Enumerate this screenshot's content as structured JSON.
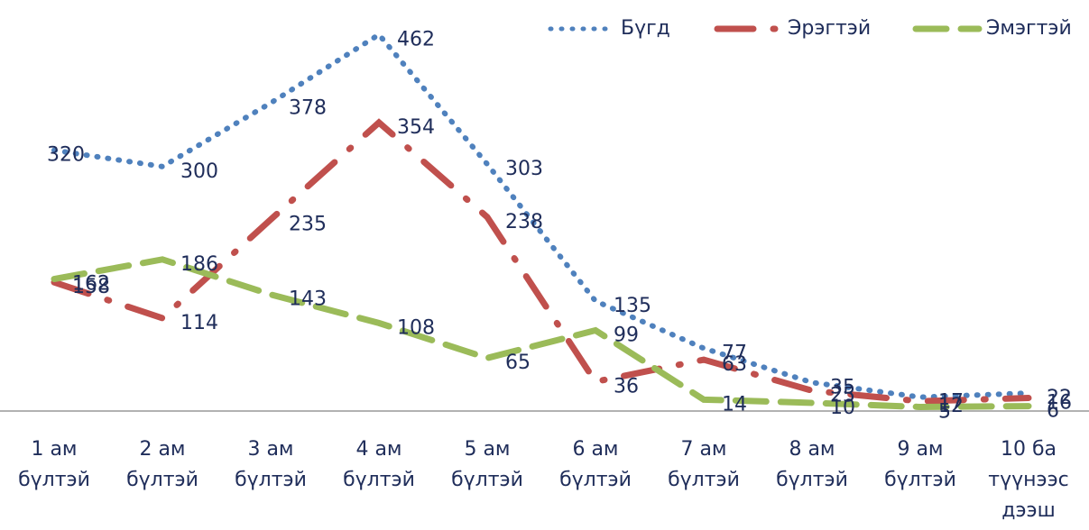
{
  "chart_data": {
    "type": "line",
    "categories": [
      "1 ам бүлтэй",
      "2 ам бүлтэй",
      "3 ам бүлтэй",
      "4 ам бүлтэй",
      "5 ам бүлтэй",
      "6 ам бүлтэй",
      "7 ам бүлтэй",
      "8 ам бүлтэй",
      "9 ам бүлтэй",
      "10 ба түүнээс дээш"
    ],
    "series": [
      {
        "name": "Бүгд",
        "color": "#4f81bd",
        "values": [
          320,
          300,
          378,
          462,
          303,
          135,
          77,
          35,
          17,
          22
        ]
      },
      {
        "name": "Эрэгтэй",
        "color": "#c0504d",
        "values": [
          158,
          114,
          235,
          354,
          238,
          36,
          63,
          25,
          12,
          16
        ]
      },
      {
        "name": "Эмэгтэй",
        "color": "#9bbb59",
        "values": [
          162,
          186,
          143,
          108,
          65,
          99,
          14,
          10,
          5,
          6
        ]
      }
    ],
    "ylim": [
      0,
      500
    ],
    "legend": "top-right"
  }
}
